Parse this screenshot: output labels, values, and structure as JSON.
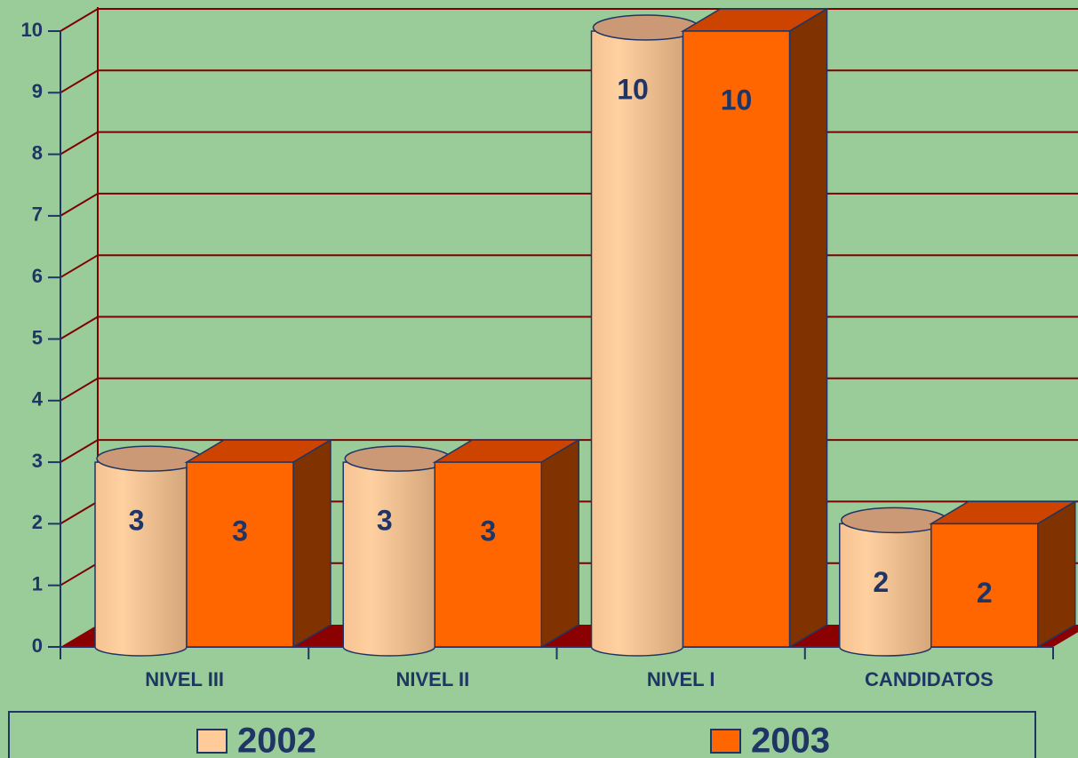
{
  "chart_data": {
    "type": "bar",
    "categories": [
      "NIVEL III",
      "NIVEL II",
      "NIVEL I",
      "CANDIDATOS"
    ],
    "series": [
      {
        "name": "2002",
        "color": "#ffcc99",
        "values": [
          3,
          3,
          10,
          2
        ]
      },
      {
        "name": "2003",
        "color": "#ff6600",
        "values": [
          3,
          3,
          10,
          2
        ]
      }
    ],
    "ylim": [
      0,
      10
    ],
    "yticks": [
      0,
      1,
      2,
      3,
      4,
      5,
      6,
      7,
      8,
      9,
      10
    ],
    "grid": true,
    "legend": "bottom"
  }
}
